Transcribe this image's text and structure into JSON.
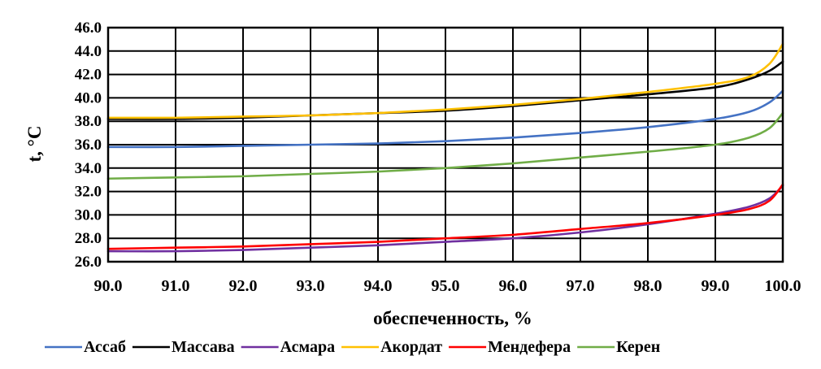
{
  "chart_data": {
    "type": "line",
    "title": "",
    "xlabel": "обеспеченность, %",
    "ylabel": "t, °C",
    "xlim": [
      90.0,
      100.0
    ],
    "ylim": [
      26.0,
      46.0
    ],
    "x_ticks": [
      "90.0",
      "91.0",
      "92.0",
      "93.0",
      "94.0",
      "95.0",
      "96.0",
      "97.0",
      "98.0",
      "99.0",
      "100.0"
    ],
    "y_ticks": [
      "26.0",
      "28.0",
      "30.0",
      "32.0",
      "34.0",
      "36.0",
      "38.0",
      "40.0",
      "42.0",
      "44.0",
      "46.0"
    ],
    "grid": true,
    "legend_position": "bottom",
    "series": [
      {
        "name": "Ассаб",
        "color": "#4472C4",
        "x": [
          90,
          91,
          92,
          93,
          94,
          95,
          96,
          97,
          98,
          99,
          99.5,
          99.8,
          100
        ],
        "y": [
          35.8,
          35.8,
          35.9,
          36.0,
          36.1,
          36.3,
          36.6,
          37.0,
          37.5,
          38.2,
          38.8,
          39.6,
          40.6
        ]
      },
      {
        "name": "Массава",
        "color": "#000000",
        "x": [
          90,
          91,
          92,
          93,
          94,
          95,
          96,
          97,
          98,
          99,
          99.5,
          99.8,
          100
        ],
        "y": [
          38.2,
          38.2,
          38.3,
          38.5,
          38.7,
          38.9,
          39.3,
          39.8,
          40.3,
          40.9,
          41.6,
          42.3,
          43.1
        ]
      },
      {
        "name": "Асмара",
        "color": "#7030A0",
        "x": [
          90,
          91,
          92,
          93,
          94,
          95,
          96,
          97,
          98,
          99,
          99.5,
          99.8,
          100
        ],
        "y": [
          26.9,
          26.9,
          27.0,
          27.2,
          27.4,
          27.7,
          28.0,
          28.5,
          29.2,
          30.1,
          30.7,
          31.4,
          32.5
        ]
      },
      {
        "name": "Акордат",
        "color": "#FFC000",
        "x": [
          90,
          91,
          92,
          93,
          94,
          95,
          96,
          97,
          98,
          99,
          99.5,
          99.8,
          100
        ],
        "y": [
          38.3,
          38.3,
          38.4,
          38.5,
          38.7,
          39.0,
          39.4,
          39.9,
          40.5,
          41.2,
          41.8,
          42.9,
          44.6
        ]
      },
      {
        "name": "Мендефера",
        "color": "#FF0000",
        "x": [
          90,
          91,
          92,
          93,
          94,
          95,
          96,
          97,
          98,
          99,
          99.5,
          99.8,
          100
        ],
        "y": [
          27.1,
          27.2,
          27.3,
          27.5,
          27.7,
          28.0,
          28.3,
          28.8,
          29.3,
          30.0,
          30.5,
          31.2,
          32.6
        ]
      },
      {
        "name": "Керен",
        "color": "#70AD47",
        "x": [
          90,
          91,
          92,
          93,
          94,
          95,
          96,
          97,
          98,
          99,
          99.5,
          99.8,
          100
        ],
        "y": [
          33.1,
          33.2,
          33.3,
          33.5,
          33.7,
          34.0,
          34.4,
          34.9,
          35.4,
          36.0,
          36.6,
          37.4,
          38.7
        ]
      }
    ]
  }
}
